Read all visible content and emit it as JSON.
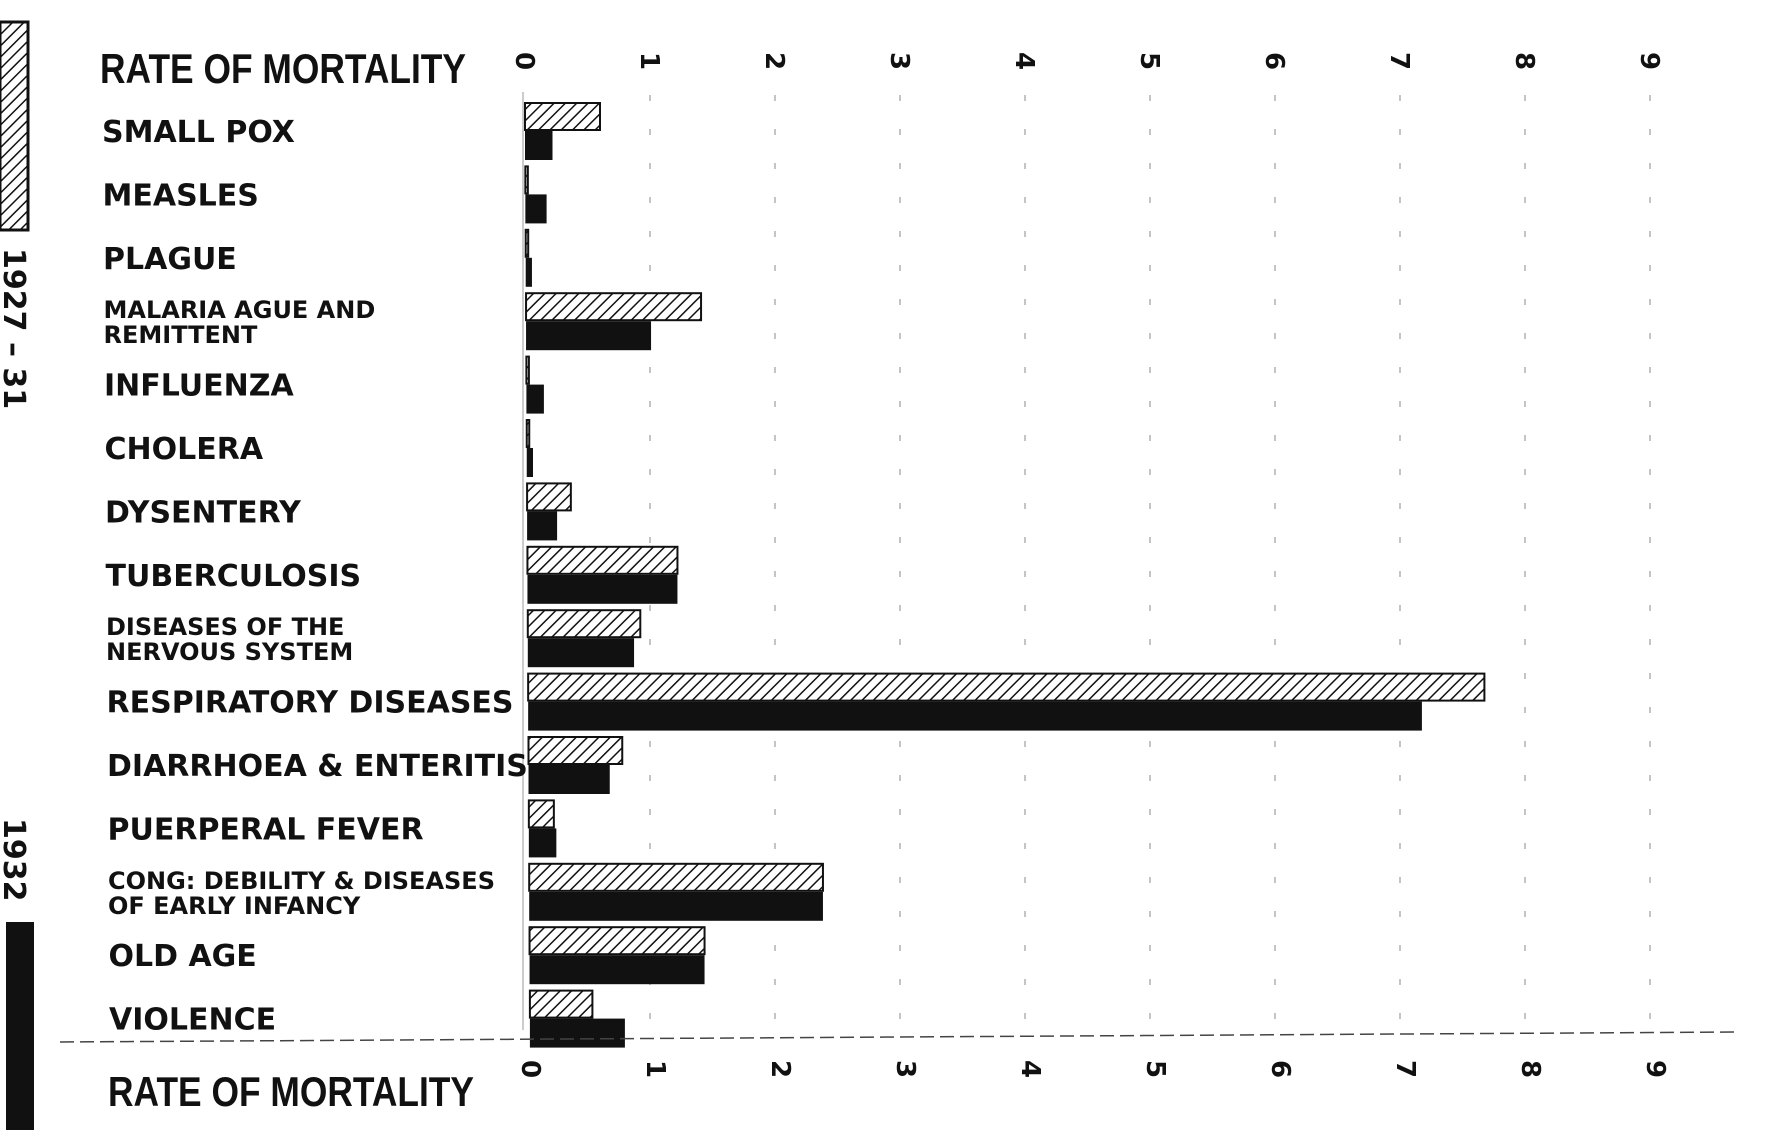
{
  "chart_data": {
    "type": "bar",
    "orientation": "horizontal",
    "title_top": "RATE OF MORTALITY",
    "title_bottom": "RATE OF MORTALITY",
    "xlim": [
      0,
      9
    ],
    "xticks": [
      "0",
      "1",
      "2",
      "3",
      "4",
      "5",
      "6",
      "7",
      "8",
      "9"
    ],
    "categories": [
      [
        "SMALL  POX"
      ],
      [
        "MEASLES"
      ],
      [
        "PLAGUE"
      ],
      [
        "MALARIA  AGUE  AND",
        "REMITTENT"
      ],
      [
        "INFLUENZA"
      ],
      [
        "CHOLERA"
      ],
      [
        "DYSENTERY"
      ],
      [
        "TUBERCULOSIS"
      ],
      [
        "DISEASES   OF  THE",
        "NERVOUS  SYSTEM"
      ],
      [
        "RESPIRATORY  DISEASES"
      ],
      [
        "DIARRHOEA & ENTERITIS"
      ],
      [
        "PUERPERAL  FEVER"
      ],
      [
        "CONG: DEBILITY & DISEASES",
        "OF  EARLY  INFANCY"
      ],
      [
        "OLD  AGE"
      ],
      [
        "VIOLENCE"
      ]
    ],
    "series": [
      {
        "name": "1927 – 31",
        "pattern": "hatched",
        "values": [
          0.6,
          0.02,
          0.02,
          1.4,
          0.02,
          0.02,
          0.35,
          1.2,
          0.9,
          7.65,
          0.75,
          0.2,
          2.35,
          1.4,
          0.5
        ]
      },
      {
        "name": "1932",
        "pattern": "solid",
        "values": [
          0.22,
          0.17,
          0.05,
          1.0,
          0.14,
          0.05,
          0.24,
          1.2,
          0.85,
          7.15,
          0.65,
          0.22,
          2.35,
          1.4,
          0.76
        ]
      }
    ],
    "grid": true,
    "legend": "left-vertical",
    "colors": {
      "solid": "#111111",
      "hatch": "#111111",
      "background": "#ffffff"
    }
  }
}
